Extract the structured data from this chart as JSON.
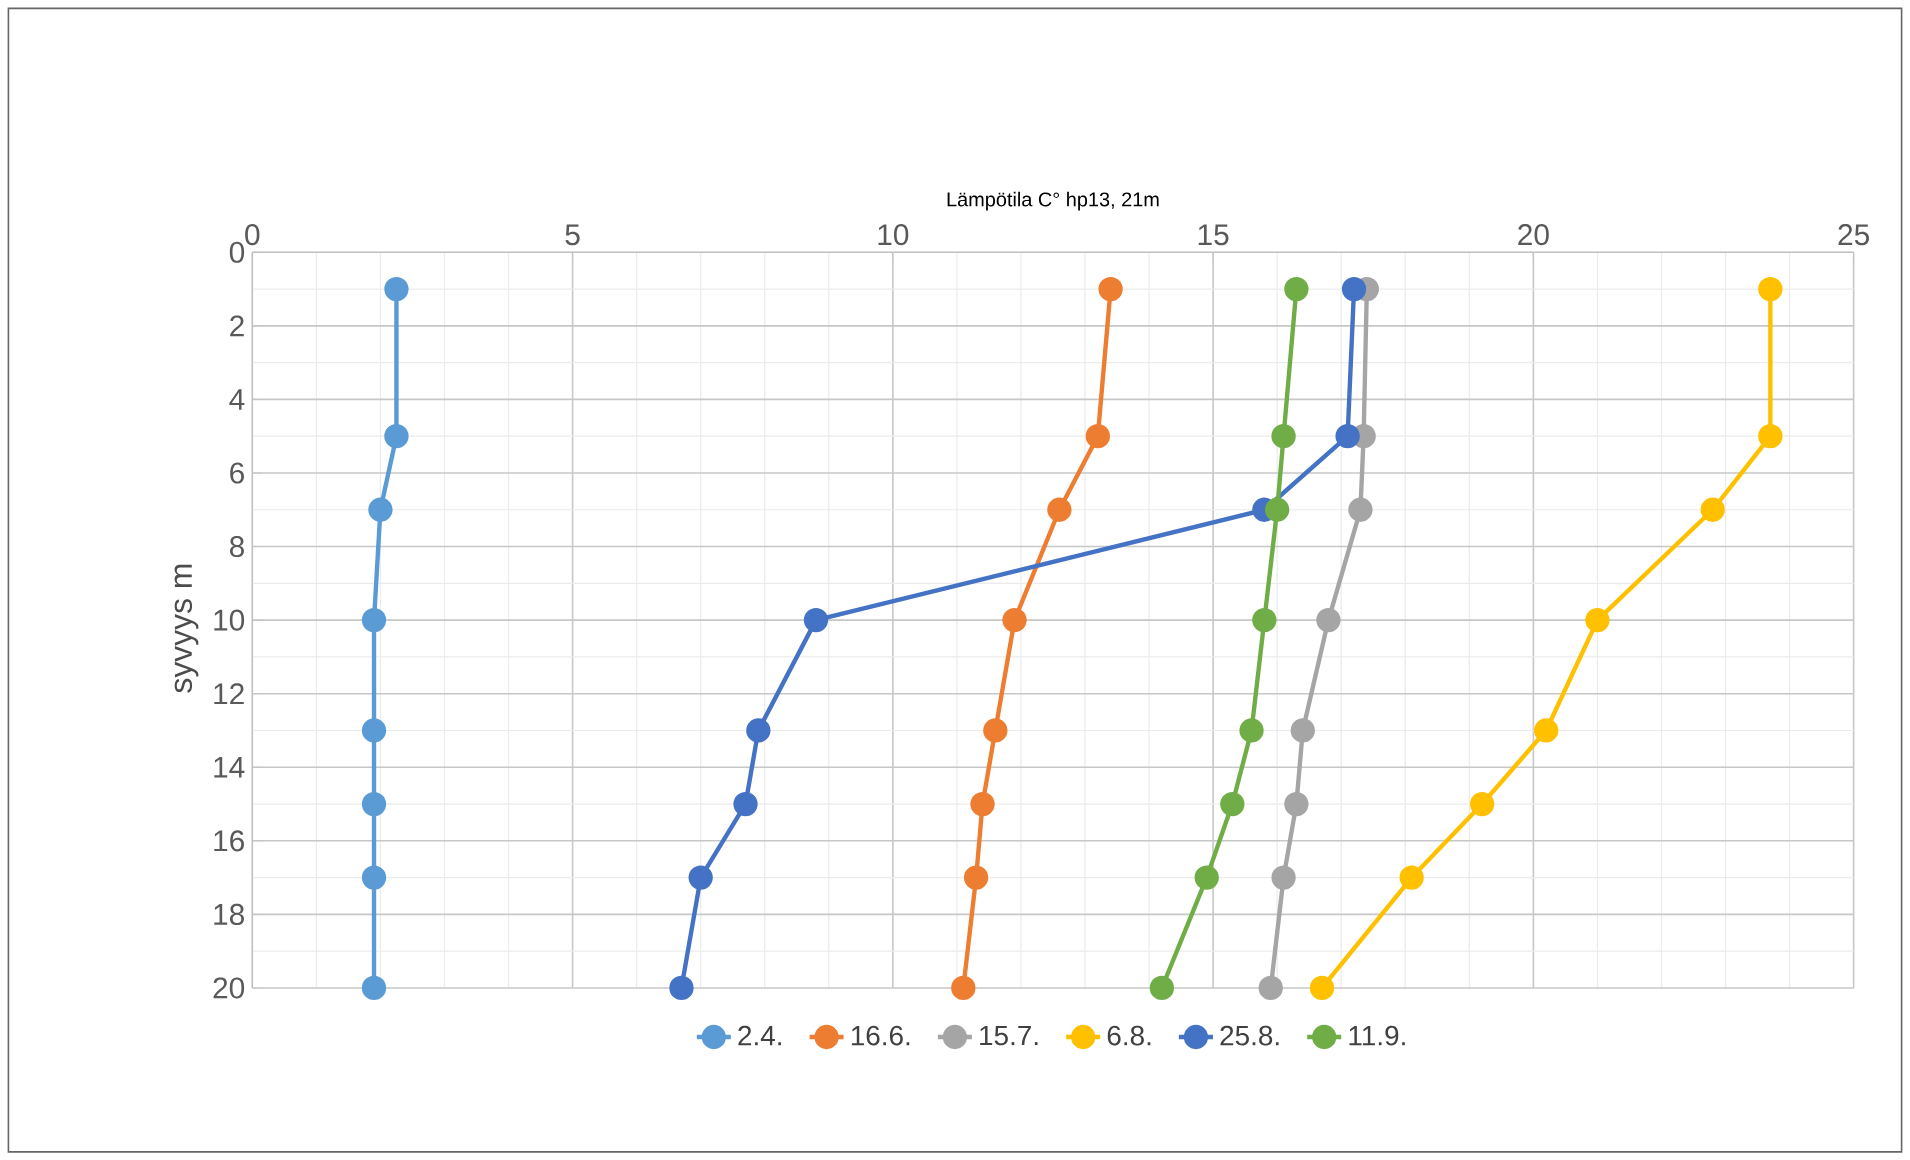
{
  "chart_data": {
    "type": "line",
    "xlabel": "Lämpötila C° hp13, 21m",
    "ylabel": "syvyys m",
    "xlim": [
      0,
      25
    ],
    "xticks": [
      0,
      5,
      10,
      15,
      20,
      25
    ],
    "ylim": [
      20,
      0
    ],
    "yticks": [
      0,
      2,
      4,
      6,
      8,
      10,
      12,
      14,
      16,
      18,
      20
    ],
    "grid": true,
    "legend": "bottom",
    "marker": "circle",
    "line_style": "solid",
    "series": [
      {
        "name": "2.4.",
        "color": "#5b9bd5",
        "x": [
          2.25,
          2.25,
          2.0,
          1.9,
          1.9,
          1.9,
          1.9,
          1.9
        ],
        "values": [
          1,
          5,
          7,
          10,
          13,
          15,
          17,
          20
        ]
      },
      {
        "name": "16.6.",
        "color": "#ed7d31",
        "x": [
          13.4,
          13.2,
          12.6,
          11.9,
          11.6,
          11.4,
          11.3,
          11.1
        ],
        "values": [
          1,
          5,
          7,
          10,
          13,
          15,
          17,
          20
        ]
      },
      {
        "name": "15.7.",
        "color": "#a5a5a5",
        "x": [
          17.4,
          17.35,
          17.3,
          16.8,
          16.4,
          16.3,
          16.1,
          15.9
        ],
        "values": [
          1,
          5,
          7,
          10,
          13,
          15,
          17,
          20
        ]
      },
      {
        "name": "6.8.",
        "color": "#ffc000",
        "x": [
          23.7,
          23.7,
          22.8,
          21.0,
          20.2,
          19.2,
          18.1,
          16.7
        ],
        "values": [
          1,
          5,
          7,
          10,
          13,
          15,
          17,
          20
        ]
      },
      {
        "name": "25.8.",
        "color": "#4472c4",
        "x": [
          17.2,
          17.1,
          15.8,
          8.8,
          7.9,
          7.7,
          7.0,
          6.7
        ],
        "values": [
          1,
          5,
          7,
          10,
          13,
          15,
          17,
          20
        ]
      },
      {
        "name": "11.9.",
        "color": "#70ad47",
        "x": [
          16.3,
          16.1,
          16.0,
          15.8,
          15.6,
          15.3,
          14.9,
          14.2
        ],
        "values": [
          1,
          5,
          7,
          10,
          13,
          15,
          17,
          20
        ]
      }
    ]
  }
}
